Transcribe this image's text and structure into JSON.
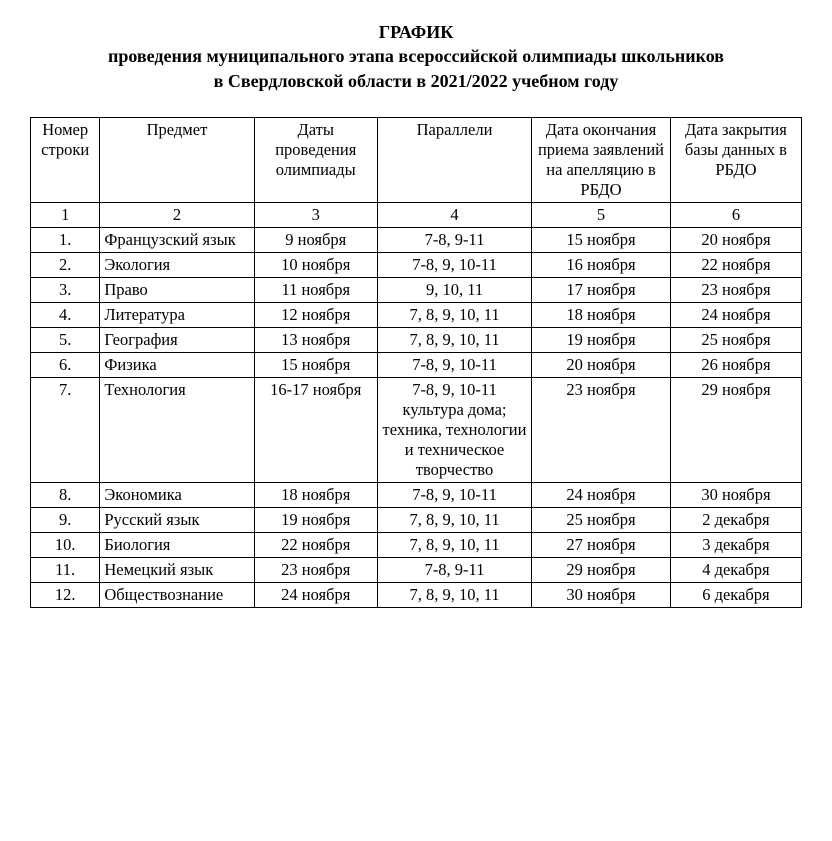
{
  "title": {
    "line1": "ГРАФИК",
    "line2": "проведения муниципального этапа всероссийской олимпиады школьников",
    "line3": "в Свердловской области в 2021/2022 учебном году"
  },
  "table": {
    "columns": [
      "Номер строки",
      "Предмет",
      "Даты проведения олимпиады",
      "Параллели",
      "Дата окончания приема заявлений на апелляцию в РБДО",
      "Дата закрытия базы данных в РБДО"
    ],
    "column_numbers": [
      "1",
      "2",
      "3",
      "4",
      "5",
      "6"
    ],
    "rows": [
      {
        "num": "1.",
        "subject": "Французский язык",
        "dates": "9 ноября",
        "grades": "7-8, 9-11",
        "deadline": "15 ноября",
        "close": "20 ноября"
      },
      {
        "num": "2.",
        "subject": "Экология",
        "dates": "10 ноября",
        "grades": "7-8, 9, 10-11",
        "deadline": "16 ноября",
        "close": "22 ноября"
      },
      {
        "num": "3.",
        "subject": "Право",
        "dates": "11 ноября",
        "grades": "9, 10, 11",
        "deadline": "17 ноября",
        "close": "23 ноября"
      },
      {
        "num": "4.",
        "subject": "Литература",
        "dates": "12 ноября",
        "grades": "7, 8, 9, 10, 11",
        "deadline": "18 ноября",
        "close": "24 ноября"
      },
      {
        "num": "5.",
        "subject": "География",
        "dates": "13 ноября",
        "grades": "7, 8, 9, 10, 11",
        "deadline": "19 ноября",
        "close": "25 ноября"
      },
      {
        "num": "6.",
        "subject": "Физика",
        "dates": "15 ноября",
        "grades": "7-8, 9, 10-11",
        "deadline": "20 ноября",
        "close": "26 ноября"
      },
      {
        "num": "7.",
        "subject": "Технология",
        "dates": "16-17 ноября",
        "grades": "7-8, 9, 10-11 культура дома; техника, технологии и техническое творчество",
        "deadline": "23 ноября",
        "close": "29 ноября"
      },
      {
        "num": "8.",
        "subject": "Экономика",
        "dates": "18 ноября",
        "grades": "7-8, 9, 10-11",
        "deadline": "24 ноября",
        "close": "30 ноября"
      },
      {
        "num": "9.",
        "subject": "Русский язык",
        "dates": "19 ноября",
        "grades": "7, 8, 9, 10, 11",
        "deadline": "25 ноября",
        "close": "2 декабря"
      },
      {
        "num": "10.",
        "subject": "Биология",
        "dates": "22 ноября",
        "grades": "7, 8, 9, 10, 11",
        "deadline": "27 ноября",
        "close": "3 декабря"
      },
      {
        "num": "11.",
        "subject": "Немецкий язык",
        "dates": "23 ноября",
        "grades": "7-8, 9-11",
        "deadline": "29 ноября",
        "close": "4 декабря"
      },
      {
        "num": "12.",
        "subject": "Обществознание",
        "dates": "24 ноября",
        "grades": "7, 8, 9, 10, 11",
        "deadline": "30 ноября",
        "close": "6 декабря"
      }
    ],
    "border_color": "#000000",
    "text_color": "#000000",
    "background_color": "#ffffff"
  }
}
